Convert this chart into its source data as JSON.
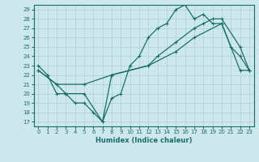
{
  "xlabel": "Humidex (Indice chaleur)",
  "bg_color": "#cde8ed",
  "grid_color": "#b0d4da",
  "line_color": "#1a6e6a",
  "xlim": [
    -0.5,
    23.5
  ],
  "ylim": [
    16.5,
    29.5
  ],
  "xticks": [
    0,
    1,
    2,
    3,
    4,
    5,
    6,
    7,
    8,
    9,
    10,
    11,
    12,
    13,
    14,
    15,
    16,
    17,
    18,
    19,
    20,
    21,
    22,
    23
  ],
  "yticks": [
    17,
    18,
    19,
    20,
    21,
    22,
    23,
    24,
    25,
    26,
    27,
    28,
    29
  ],
  "line1_x": [
    0,
    1,
    2,
    3,
    4,
    5,
    6,
    7,
    8,
    9,
    10,
    11,
    12,
    13,
    14,
    15,
    16,
    17,
    18,
    19,
    20,
    21,
    22,
    23
  ],
  "line1_y": [
    23,
    22,
    20,
    20,
    19,
    19,
    18,
    17,
    19.5,
    20,
    23,
    24,
    26,
    27,
    27.5,
    29,
    29.5,
    28,
    28.5,
    27.5,
    27.5,
    25,
    24,
    22.5
  ],
  "line2_x": [
    0,
    2,
    3,
    5,
    7,
    8,
    12,
    13,
    15,
    17,
    18,
    19,
    20,
    22,
    23
  ],
  "line2_y": [
    22.5,
    21,
    20,
    20,
    17,
    22,
    23,
    24,
    25.5,
    27,
    27.5,
    28,
    28,
    25,
    22.5
  ],
  "line3_x": [
    0,
    2,
    5,
    8,
    12,
    15,
    17,
    20,
    22,
    23
  ],
  "line3_y": [
    22.5,
    21,
    21,
    22,
    23,
    24.5,
    26,
    27.5,
    22.5,
    22.5
  ]
}
